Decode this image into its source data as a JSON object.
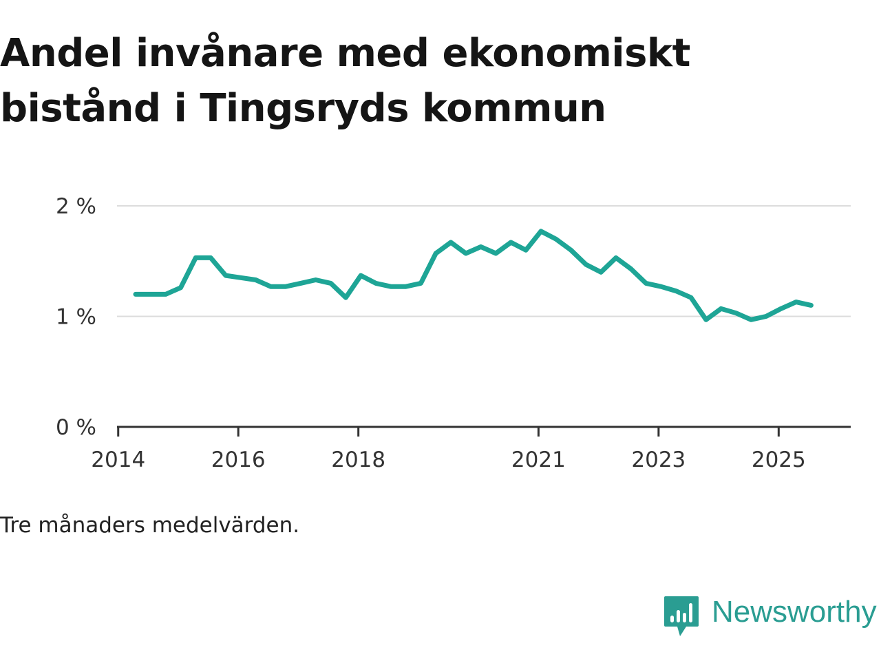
{
  "title_lines": [
    "Andel invånare med ekonomiskt",
    "bistånd i Tingsryds kommun"
  ],
  "note": "Tre månaders medelvärden.",
  "brand": {
    "name": "Newsworthy",
    "icon": "chart-bubble-icon",
    "color": "#2a9d92"
  },
  "chart_data": {
    "type": "line",
    "title": "Andel invånare med ekonomiskt bistånd i Tingsryds kommun",
    "xlabel": "",
    "ylabel": "",
    "ylim": [
      0,
      2
    ],
    "xlim": [
      2013.98,
      2026.2
    ],
    "grid": true,
    "y_ticks": [
      {
        "value": 0,
        "label": "0 %"
      },
      {
        "value": 1,
        "label": "1 %"
      },
      {
        "value": 2,
        "label": "2 %"
      }
    ],
    "x_ticks": [
      {
        "value": 2014,
        "label": "2014"
      },
      {
        "value": 2016,
        "label": "2016"
      },
      {
        "value": 2018,
        "label": "2018"
      },
      {
        "value": 2021,
        "label": "2021"
      },
      {
        "value": 2023,
        "label": "2023"
      },
      {
        "value": 2025,
        "label": "2025"
      }
    ],
    "color": "#1ea596",
    "series": [
      {
        "name": "Andel invånare med ekonomiskt bistånd",
        "x": [
          2014.29,
          2014.54,
          2014.79,
          2015.04,
          2015.29,
          2015.54,
          2015.79,
          2016.04,
          2016.29,
          2016.54,
          2016.79,
          2017.04,
          2017.29,
          2017.54,
          2017.79,
          2018.04,
          2018.29,
          2018.54,
          2018.79,
          2019.04,
          2019.29,
          2019.54,
          2019.79,
          2020.04,
          2020.29,
          2020.54,
          2020.79,
          2021.04,
          2021.29,
          2021.54,
          2021.79,
          2022.04,
          2022.29,
          2022.54,
          2022.79,
          2023.04,
          2023.29,
          2023.54,
          2023.79,
          2024.04,
          2024.29,
          2024.54,
          2024.79,
          2025.04,
          2025.29,
          2025.54
        ],
        "values": [
          1.2,
          1.2,
          1.2,
          1.26,
          1.53,
          1.53,
          1.37,
          1.35,
          1.33,
          1.27,
          1.27,
          1.3,
          1.33,
          1.3,
          1.17,
          1.37,
          1.3,
          1.27,
          1.27,
          1.3,
          1.57,
          1.67,
          1.57,
          1.63,
          1.57,
          1.67,
          1.6,
          1.77,
          1.7,
          1.6,
          1.47,
          1.4,
          1.53,
          1.43,
          1.3,
          1.27,
          1.23,
          1.17,
          0.97,
          1.07,
          1.03,
          0.97,
          1.0,
          1.07,
          1.13,
          1.1
        ]
      }
    ]
  }
}
